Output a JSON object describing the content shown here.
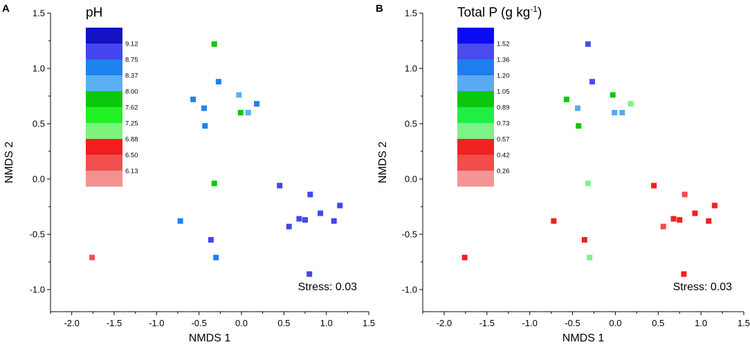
{
  "chart_data": [
    {
      "type": "scatter",
      "panel_label": "A",
      "scale_title": "pH",
      "xlabel": "NMDS 1",
      "ylabel": "NMDS 2",
      "xlim": [
        -2.25,
        1.5
      ],
      "ylim": [
        -1.2,
        1.5
      ],
      "xticks": [
        "-2.0",
        "-1.5",
        "-1.0",
        "-0.5",
        "0.0",
        "0.5",
        "1.0",
        "1.5"
      ],
      "yticks": [
        "-1.0",
        "-0.5",
        "0.0",
        "0.5",
        "1.0",
        "1.5"
      ],
      "stress_text": "Stress: 0.03",
      "legend": {
        "colors": [
          "#1212c4",
          "#4545ee",
          "#1e82f0",
          "#5ab0f2",
          "#0cc80c",
          "#22f022",
          "#7cf27c",
          "#f01e1e",
          "#f25050",
          "#f49090"
        ],
        "labels": [
          "9.12",
          "8.75",
          "8.37",
          "8.00",
          "7.62",
          "7.25",
          "6.88",
          "6.50",
          "6.13"
        ]
      },
      "points": [
        {
          "x": -1.76,
          "y": -0.71,
          "color": "#f25050"
        },
        {
          "x": -0.72,
          "y": -0.38,
          "color": "#1e82f0"
        },
        {
          "x": -0.57,
          "y": 0.72,
          "color": "#1e82f0"
        },
        {
          "x": -0.44,
          "y": 0.64,
          "color": "#1e82f0"
        },
        {
          "x": -0.43,
          "y": 0.48,
          "color": "#1e82f0"
        },
        {
          "x": -0.36,
          "y": -0.55,
          "color": "#4545ee"
        },
        {
          "x": -0.32,
          "y": 1.22,
          "color": "#0cc80c"
        },
        {
          "x": -0.32,
          "y": -0.04,
          "color": "#0cc80c"
        },
        {
          "x": -0.3,
          "y": -0.71,
          "color": "#1e82f0"
        },
        {
          "x": -0.27,
          "y": 0.88,
          "color": "#1e82f0"
        },
        {
          "x": -0.03,
          "y": 0.76,
          "color": "#5ab0f2"
        },
        {
          "x": -0.01,
          "y": 0.6,
          "color": "#0cc80c"
        },
        {
          "x": 0.08,
          "y": 0.6,
          "color": "#5ab0f2"
        },
        {
          "x": 0.18,
          "y": 0.68,
          "color": "#1e82f0"
        },
        {
          "x": 0.45,
          "y": -0.06,
          "color": "#4545ee"
        },
        {
          "x": 0.56,
          "y": -0.43,
          "color": "#4545ee"
        },
        {
          "x": 0.68,
          "y": -0.36,
          "color": "#4545ee"
        },
        {
          "x": 0.75,
          "y": -0.37,
          "color": "#4545ee"
        },
        {
          "x": 0.81,
          "y": -0.14,
          "color": "#4545ee"
        },
        {
          "x": 0.8,
          "y": -0.86,
          "color": "#4545ee"
        },
        {
          "x": 0.93,
          "y": -0.31,
          "color": "#4545ee"
        },
        {
          "x": 1.09,
          "y": -0.38,
          "color": "#4545ee"
        },
        {
          "x": 1.16,
          "y": -0.24,
          "color": "#4545ee"
        }
      ]
    },
    {
      "type": "scatter",
      "panel_label": "B",
      "scale_title": "Total P (g kg",
      "scale_title_sup": "-1",
      "scale_title_end": ")",
      "xlabel": "NMDS 1",
      "ylabel": "NMDS 2",
      "xlim": [
        -2.25,
        1.5
      ],
      "ylim": [
        -1.2,
        1.5
      ],
      "xticks": [
        "-2.0",
        "-1.5",
        "-1.0",
        "-0.5",
        "0.0",
        "0.5",
        "1.0",
        "1.5"
      ],
      "yticks": [
        "-1.0",
        "-0.5",
        "0.0",
        "0.5",
        "1.0",
        "1.5"
      ],
      "stress_text": "Stress: 0.03",
      "legend": {
        "colors": [
          "#0a0af5",
          "#4a4aee",
          "#1e7ef0",
          "#5aaaf2",
          "#0cc80c",
          "#22ee44",
          "#7cf28a",
          "#f02222",
          "#f24c4c",
          "#f49494"
        ],
        "labels": [
          "1.52",
          "1.36",
          "1.20",
          "1.05",
          "0.89",
          "0.73",
          "0.57",
          "0.42",
          "0.26"
        ]
      },
      "points": [
        {
          "x": -1.76,
          "y": -0.71,
          "color": "#f02222"
        },
        {
          "x": -0.72,
          "y": -0.38,
          "color": "#f02222"
        },
        {
          "x": -0.57,
          "y": 0.72,
          "color": "#0cc80c"
        },
        {
          "x": -0.44,
          "y": 0.64,
          "color": "#5aaaf2"
        },
        {
          "x": -0.43,
          "y": 0.48,
          "color": "#0cc80c"
        },
        {
          "x": -0.36,
          "y": -0.55,
          "color": "#f02222"
        },
        {
          "x": -0.32,
          "y": 1.22,
          "color": "#4a4aee"
        },
        {
          "x": -0.32,
          "y": -0.04,
          "color": "#7cf28a"
        },
        {
          "x": -0.3,
          "y": -0.71,
          "color": "#7cf28a"
        },
        {
          "x": -0.27,
          "y": 0.88,
          "color": "#4a4aee"
        },
        {
          "x": -0.03,
          "y": 0.76,
          "color": "#0cc80c"
        },
        {
          "x": -0.01,
          "y": 0.6,
          "color": "#5aaaf2"
        },
        {
          "x": 0.08,
          "y": 0.6,
          "color": "#5aaaf2"
        },
        {
          "x": 0.18,
          "y": 0.68,
          "color": "#7cf28a"
        },
        {
          "x": 0.45,
          "y": -0.06,
          "color": "#f02222"
        },
        {
          "x": 0.56,
          "y": -0.43,
          "color": "#f24c4c"
        },
        {
          "x": 0.68,
          "y": -0.36,
          "color": "#f02222"
        },
        {
          "x": 0.75,
          "y": -0.37,
          "color": "#f02222"
        },
        {
          "x": 0.81,
          "y": -0.14,
          "color": "#f24c4c"
        },
        {
          "x": 0.8,
          "y": -0.86,
          "color": "#f02222"
        },
        {
          "x": 0.93,
          "y": -0.31,
          "color": "#f02222"
        },
        {
          "x": 1.09,
          "y": -0.38,
          "color": "#f02222"
        },
        {
          "x": 1.16,
          "y": -0.24,
          "color": "#f02222"
        }
      ]
    }
  ]
}
